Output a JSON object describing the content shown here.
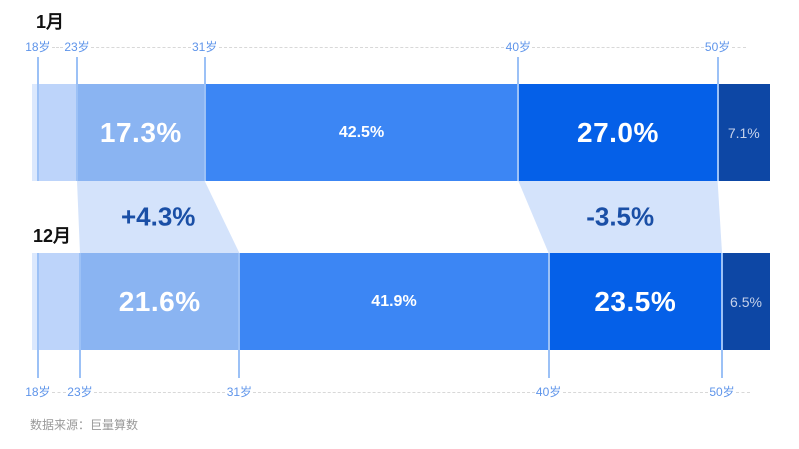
{
  "source_note": "数据来源：巨量算数",
  "chart_data": {
    "type": "bar",
    "subtype": "horizontal-stacked-percentage-comparison",
    "title": "",
    "unit": "%",
    "categories": [
      "<18岁",
      "18-23岁",
      "23-31岁",
      "31-40岁",
      "40-50岁",
      "50岁+"
    ],
    "axis_tick_labels": [
      "18岁",
      "23岁",
      "31岁",
      "40岁",
      "50岁"
    ],
    "bars": [
      {
        "name": "1月",
        "key": "jan",
        "segments": [
          {
            "age_range": "<18岁",
            "value": 0.8,
            "display": "",
            "label_style": "none"
          },
          {
            "age_range": "18-23岁",
            "value": 5.3,
            "display": "",
            "label_style": "none"
          },
          {
            "age_range": "23-31岁",
            "value": 17.3,
            "display": "17.3%",
            "label_style": "lg"
          },
          {
            "age_range": "31-40岁",
            "value": 42.5,
            "display": "42.5%",
            "label_style": "md"
          },
          {
            "age_range": "40-50岁",
            "value": 27.0,
            "display": "27.0%",
            "label_style": "lg"
          },
          {
            "age_range": "50岁+",
            "value": 7.1,
            "display": "7.1%",
            "label_style": "sm"
          }
        ]
      },
      {
        "name": "12月",
        "key": "dec",
        "segments": [
          {
            "age_range": "<18岁",
            "value": 0.8,
            "display": "",
            "label_style": "none"
          },
          {
            "age_range": "18-23岁",
            "value": 5.7,
            "display": "",
            "label_style": "none"
          },
          {
            "age_range": "23-31岁",
            "value": 21.6,
            "display": "21.6%",
            "label_style": "lg"
          },
          {
            "age_range": "31-40岁",
            "value": 41.9,
            "display": "41.9%",
            "label_style": "md"
          },
          {
            "age_range": "40-50岁",
            "value": 23.5,
            "display": "23.5%",
            "label_style": "lg"
          },
          {
            "age_range": "50岁+",
            "value": 6.5,
            "display": "6.5%",
            "label_style": "sm"
          }
        ]
      }
    ],
    "flows": [
      {
        "segment_index": 2,
        "age_range": "23-31岁",
        "delta_label": "+4.3%"
      },
      {
        "segment_index": 4,
        "age_range": "40-50岁",
        "delta_label": "-3.5%"
      }
    ],
    "colors": {
      "segments": [
        "#dbe8fd",
        "#bdd4fa",
        "#8ab4f2",
        "#3c86f4",
        "#0560e8",
        "#0d47a5"
      ],
      "flow_fill": "#d4e3fb",
      "delta_text": "#1a4fa6",
      "tick_line": "#9cc1f6",
      "axis_label": "#5e94ea",
      "dashed_line": "#d8d8d8",
      "value_text": "#ffffff",
      "value_text_small": "#c6d2ea",
      "title_text": "#111111",
      "source_text": "#999999"
    }
  }
}
